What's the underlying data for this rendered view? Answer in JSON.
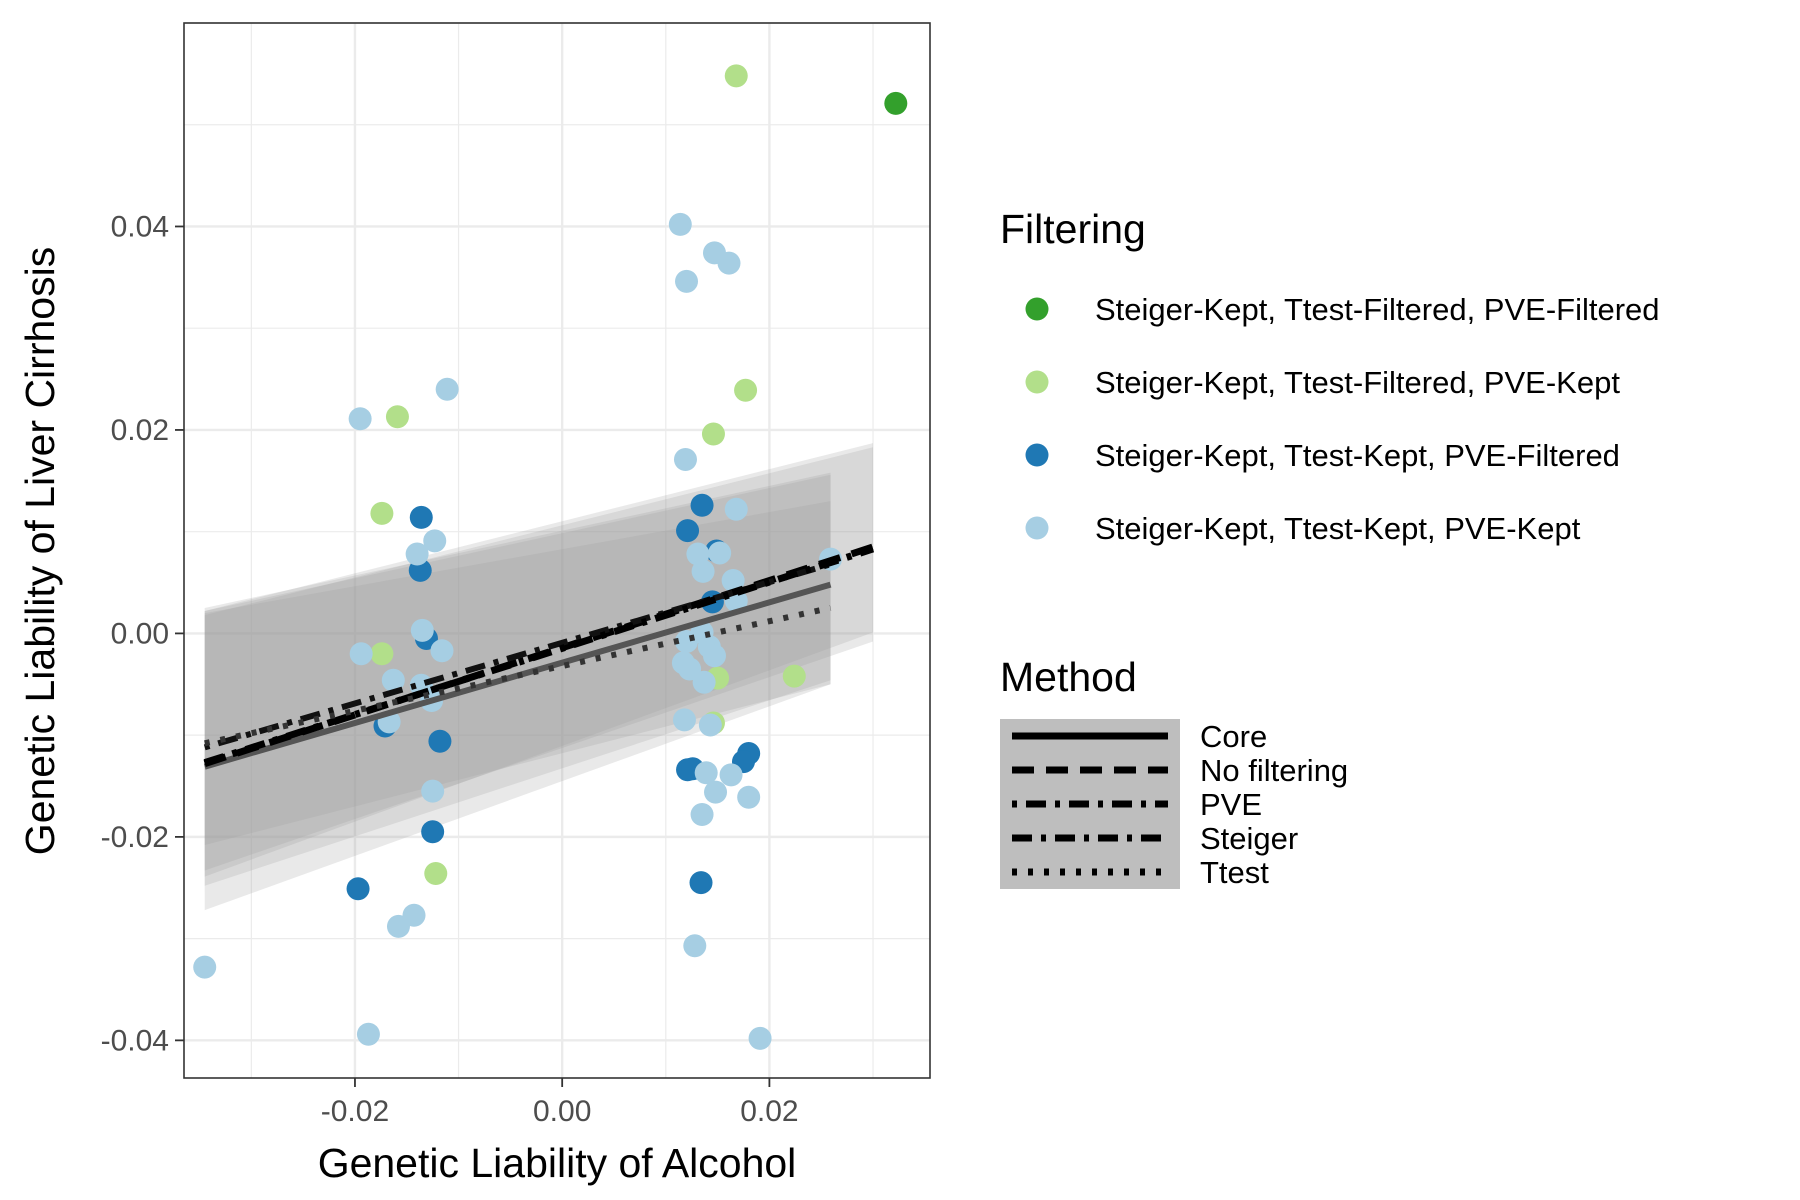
{
  "chart_data": {
    "type": "scatter",
    "xlabel": "Genetic Liability of Alcohol",
    "ylabel": "Genetic Liability of Liver Cirrhosis",
    "xlim": [
      -0.0365,
      0.0355
    ],
    "ylim": [
      -0.0437,
      0.06
    ],
    "x_ticks": [
      -0.02,
      0.0,
      0.02
    ],
    "x_tick_labels": [
      "-0.02",
      "0.00",
      "0.02"
    ],
    "y_ticks": [
      -0.04,
      -0.02,
      0.0,
      0.02,
      0.04
    ],
    "y_tick_labels": [
      "-0.04",
      "-0.02",
      "0.00",
      "0.02",
      "0.04"
    ],
    "grid": true,
    "legend_position": "right",
    "filtering_legend": {
      "title": "Filtering",
      "entries": [
        {
          "name": "Steiger-Kept, Ttest-Filtered, PVE-Filtered",
          "color": "#33a02c"
        },
        {
          "name": "Steiger-Kept, Ttest-Filtered, PVE-Kept",
          "color": "#b2df8a"
        },
        {
          "name": "Steiger-Kept, Ttest-Kept, PVE-Filtered",
          "color": "#1f78b4"
        },
        {
          "name": "Steiger-Kept, Ttest-Kept, PVE-Kept",
          "color": "#a6cee3"
        }
      ]
    },
    "method_legend": {
      "title": "Method",
      "entries": [
        {
          "name": "Core",
          "dash": "none"
        },
        {
          "name": "No filtering",
          "dash": "22,12"
        },
        {
          "name": "PVE",
          "dash": "5,9,20,9"
        },
        {
          "name": "Steiger",
          "dash": "20,9,5,9"
        },
        {
          "name": "Ttest",
          "dash": "5,11"
        }
      ]
    },
    "series": [
      {
        "name": "Steiger-Kept, Ttest-Filtered, PVE-Filtered",
        "color": "#33a02c",
        "points": [
          [
            0.0322,
            0.0521
          ]
        ]
      },
      {
        "name": "Steiger-Kept, Ttest-Filtered, PVE-Kept",
        "color": "#b2df8a",
        "points": [
          [
            0.0168,
            0.0548
          ],
          [
            0.0177,
            0.0239
          ],
          [
            0.0146,
            0.0196
          ],
          [
            -0.0159,
            0.0213
          ],
          [
            -0.0174,
            0.0118
          ],
          [
            -0.0174,
            -0.002
          ],
          [
            0.015,
            -0.0044
          ],
          [
            0.0224,
            -0.0042
          ],
          [
            0.0146,
            -0.0088
          ],
          [
            -0.0122,
            -0.0236
          ]
        ]
      },
      {
        "name": "Steiger-Kept, Ttest-Kept, PVE-Filtered",
        "color": "#1f78b4",
        "points": [
          [
            -0.0136,
            0.0114
          ],
          [
            -0.0137,
            0.0062
          ],
          [
            -0.0131,
            -0.0005
          ],
          [
            -0.0171,
            -0.0091
          ],
          [
            -0.0118,
            -0.0106
          ],
          [
            -0.0125,
            -0.0195
          ],
          [
            -0.0197,
            -0.0251
          ],
          [
            0.0135,
            0.0126
          ],
          [
            0.0121,
            0.0101
          ],
          [
            0.0149,
            0.0081
          ],
          [
            0.0145,
            0.0031
          ],
          [
            0.0121,
            -0.0134
          ],
          [
            0.0126,
            -0.0133
          ],
          [
            0.018,
            -0.0118
          ],
          [
            0.0175,
            -0.0126
          ],
          [
            0.0134,
            -0.0245
          ]
        ]
      },
      {
        "name": "Steiger-Kept, Ttest-Kept, PVE-Kept",
        "color": "#a6cee3",
        "points": [
          [
            -0.0195,
            0.0211
          ],
          [
            -0.0111,
            0.024
          ],
          [
            -0.0123,
            0.0091
          ],
          [
            -0.014,
            0.0078
          ],
          [
            -0.0135,
            0.0003
          ],
          [
            -0.0116,
            -0.0017
          ],
          [
            -0.0194,
            -0.002
          ],
          [
            -0.0163,
            -0.0046
          ],
          [
            -0.0136,
            -0.0051
          ],
          [
            -0.0126,
            -0.0066
          ],
          [
            -0.0167,
            -0.0087
          ],
          [
            -0.0125,
            -0.0155
          ],
          [
            -0.0158,
            -0.0288
          ],
          [
            -0.0143,
            -0.0277
          ],
          [
            -0.0187,
            -0.0394
          ],
          [
            -0.0345,
            -0.0328
          ],
          [
            0.0114,
            0.0402
          ],
          [
            0.0147,
            0.0374
          ],
          [
            0.0161,
            0.0364
          ],
          [
            0.012,
            0.0346
          ],
          [
            0.0119,
            0.0171
          ],
          [
            0.0168,
            0.0122
          ],
          [
            0.0131,
            0.0078
          ],
          [
            0.0152,
            0.0079
          ],
          [
            0.0136,
            0.0061
          ],
          [
            0.0165,
            0.0052
          ],
          [
            0.0168,
            0.0032
          ],
          [
            0.0259,
            0.0073
          ],
          [
            0.012,
            -0.0008
          ],
          [
            0.0135,
            0.0001
          ],
          [
            0.0142,
            -0.0013
          ],
          [
            0.0147,
            -0.0022
          ],
          [
            0.0117,
            -0.0029
          ],
          [
            0.0123,
            -0.0035
          ],
          [
            0.0137,
            -0.0048
          ],
          [
            0.0118,
            -0.0085
          ],
          [
            0.0143,
            -0.009
          ],
          [
            0.0139,
            -0.0137
          ],
          [
            0.0163,
            -0.0139
          ],
          [
            0.0148,
            -0.0156
          ],
          [
            0.018,
            -0.0161
          ],
          [
            0.0135,
            -0.0178
          ],
          [
            0.0128,
            -0.0307
          ],
          [
            0.0191,
            -0.0398
          ]
        ]
      }
    ],
    "regression_lines": [
      {
        "method": "Core",
        "x": [
          -0.0345,
          0.0259
        ],
        "y": [
          -0.0131,
          0.0048
        ],
        "color": "#555555",
        "width": 6,
        "band_lower": [
          -0.0248,
          -0.0046
        ],
        "band_upper": [
          0.0025,
          0.0158
        ]
      },
      {
        "method": "No filtering",
        "x": [
          -0.0345,
          0.03
        ],
        "y": [
          -0.0128,
          0.0085
        ],
        "color": "#000000",
        "width": 7,
        "band_lower": [
          -0.0233,
          -0.0008
        ],
        "band_upper": [
          0.0022,
          0.0187
        ]
      },
      {
        "method": "PVE",
        "x": [
          -0.0345,
          0.0259
        ],
        "y": [
          -0.0112,
          0.0068
        ],
        "color": "#111111",
        "width": 6,
        "band_lower": [
          -0.0272,
          -0.005
        ],
        "band_upper": [
          0.0022,
          0.0156
        ]
      },
      {
        "method": "Steiger",
        "x": [
          -0.0345,
          0.03
        ],
        "y": [
          -0.0127,
          0.0083
        ],
        "color": "#000000",
        "width": 7,
        "band_lower": [
          -0.0239,
          0.0001
        ],
        "band_upper": [
          0.0018,
          0.0183
        ]
      },
      {
        "method": "Ttest",
        "x": [
          -0.0345,
          0.0259
        ],
        "y": [
          -0.0108,
          0.0025
        ],
        "color": "#333333",
        "width": 6,
        "band_lower": [
          -0.0208,
          -0.005
        ],
        "band_upper": [
          0.002,
          0.013
        ]
      }
    ]
  }
}
